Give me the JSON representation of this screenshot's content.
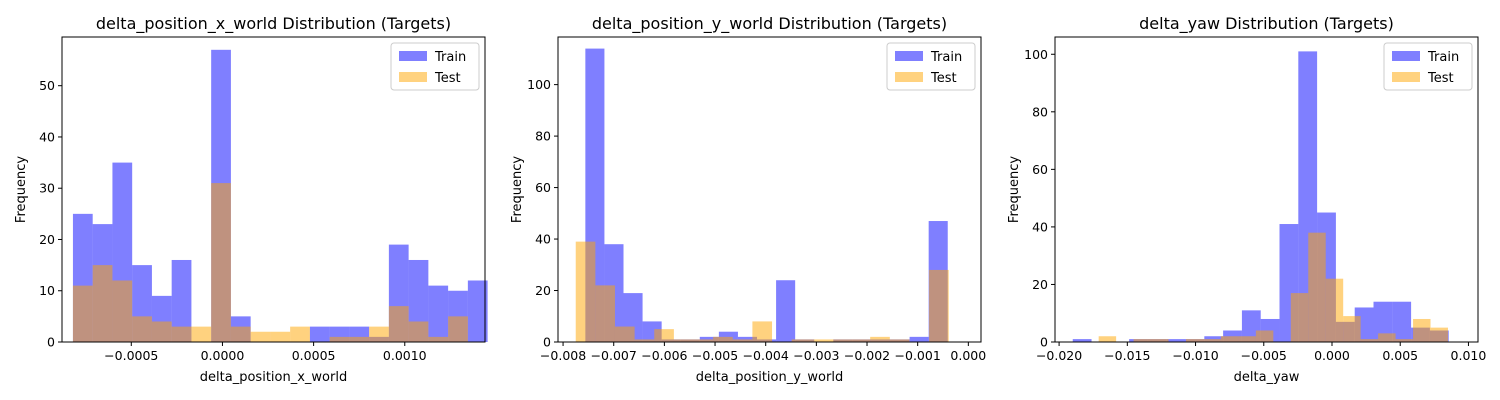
{
  "colors": {
    "train": "#0000ff",
    "test": "#ffa500",
    "train_alpha": 0.5,
    "test_alpha": 0.5
  },
  "chart_data": [
    {
      "type": "bar",
      "title": "delta_position_x_world Distribution (Targets)",
      "xlabel": "delta_position_x_world",
      "ylabel": "Frequency",
      "xlim": [
        -0.00088,
        0.00144
      ],
      "ylim": [
        0,
        59.5
      ],
      "xticks": [
        -0.0005,
        0.0,
        0.0005,
        0.001
      ],
      "xtick_labels": [
        "−0.0005",
        "0.0000",
        "0.0005",
        "0.0010"
      ],
      "yticks": [
        0,
        10,
        20,
        30,
        40,
        50
      ],
      "ytick_labels": [
        "0",
        "10",
        "20",
        "30",
        "40",
        "50"
      ],
      "legend": {
        "position": "top-right",
        "entries": [
          "Train",
          "Test"
        ]
      },
      "series": [
        {
          "name": "Train",
          "bin_start": -0.00082,
          "bin_width": 0.0001083,
          "values": [
            25,
            23,
            35,
            15,
            9,
            16,
            0,
            57,
            5,
            0,
            0,
            0,
            3,
            3,
            3,
            1,
            19,
            16,
            11,
            10,
            12
          ]
        },
        {
          "name": "Test",
          "bin_start": -0.00082,
          "bin_width": 0.0001083,
          "values": [
            11,
            15,
            12,
            5,
            4,
            3,
            3,
            31,
            3,
            2,
            2,
            3,
            0,
            1,
            1,
            3,
            7,
            4,
            1,
            5,
            0
          ]
        }
      ]
    },
    {
      "type": "bar",
      "title": "delta_position_y_world Distribution (Targets)",
      "xlabel": "delta_position_y_world",
      "ylabel": "Frequency",
      "xlim": [
        -0.0081,
        0.00025
      ],
      "ylim": [
        0,
        118.5
      ],
      "xticks": [
        -0.008,
        -0.007,
        -0.006,
        -0.005,
        -0.004,
        -0.003,
        -0.002,
        -0.001,
        0.0
      ],
      "xtick_labels": [
        "−0.008",
        "−0.007",
        "−0.006",
        "−0.005",
        "−0.004",
        "−0.003",
        "−0.002",
        "−0.001",
        "0.000"
      ],
      "yticks": [
        0,
        20,
        40,
        60,
        80,
        100
      ],
      "ytick_labels": [
        "0",
        "20",
        "40",
        "60",
        "80",
        "100"
      ],
      "legend": {
        "position": "top-right",
        "entries": [
          "Train",
          "Test"
        ]
      },
      "series": [
        {
          "name": "Train",
          "bin_start": -0.00756,
          "bin_width": 0.0003765,
          "values": [
            114,
            38,
            19,
            8,
            1,
            1,
            2,
            4,
            2,
            1,
            24,
            1,
            0,
            1,
            1,
            1,
            1,
            2,
            47
          ]
        },
        {
          "name": "Test",
          "bin_start": -0.00775,
          "bin_width": 0.0003875,
          "values": [
            39,
            22,
            6,
            1,
            5,
            1,
            1,
            2,
            1,
            8,
            0,
            1,
            1,
            1,
            1,
            2,
            1,
            0,
            28
          ]
        }
      ]
    },
    {
      "type": "bar",
      "title": "delta_yaw Distribution (Targets)",
      "xlabel": "delta_yaw",
      "ylabel": "Frequency",
      "xlim": [
        -0.0203,
        0.0107
      ],
      "ylim": [
        0,
        106
      ],
      "xticks": [
        -0.02,
        -0.015,
        -0.01,
        -0.005,
        0.0,
        0.005,
        0.01
      ],
      "xtick_labels": [
        "−0.020",
        "−0.015",
        "−0.010",
        "−0.005",
        "0.000",
        "0.005",
        "0.010"
      ],
      "yticks": [
        0,
        20,
        40,
        60,
        80,
        100
      ],
      "ytick_labels": [
        "0",
        "20",
        "40",
        "60",
        "80",
        "100"
      ],
      "legend": {
        "position": "top-right",
        "entries": [
          "Train",
          "Test"
        ]
      },
      "series": [
        {
          "name": "Train",
          "bin_start": -0.019,
          "bin_width": 0.0013776,
          "values": [
            1,
            0,
            0,
            1,
            1,
            1,
            1,
            2,
            4,
            11,
            8,
            41,
            101,
            45,
            7,
            12,
            14,
            14,
            5,
            4
          ]
        },
        {
          "name": "Test",
          "bin_start": -0.0171,
          "bin_width": 0.00128,
          "values": [
            2,
            0,
            1,
            1,
            0,
            1,
            1,
            2,
            2,
            4,
            0,
            17,
            38,
            22,
            9,
            1,
            3,
            1,
            8,
            5
          ]
        }
      ]
    }
  ]
}
